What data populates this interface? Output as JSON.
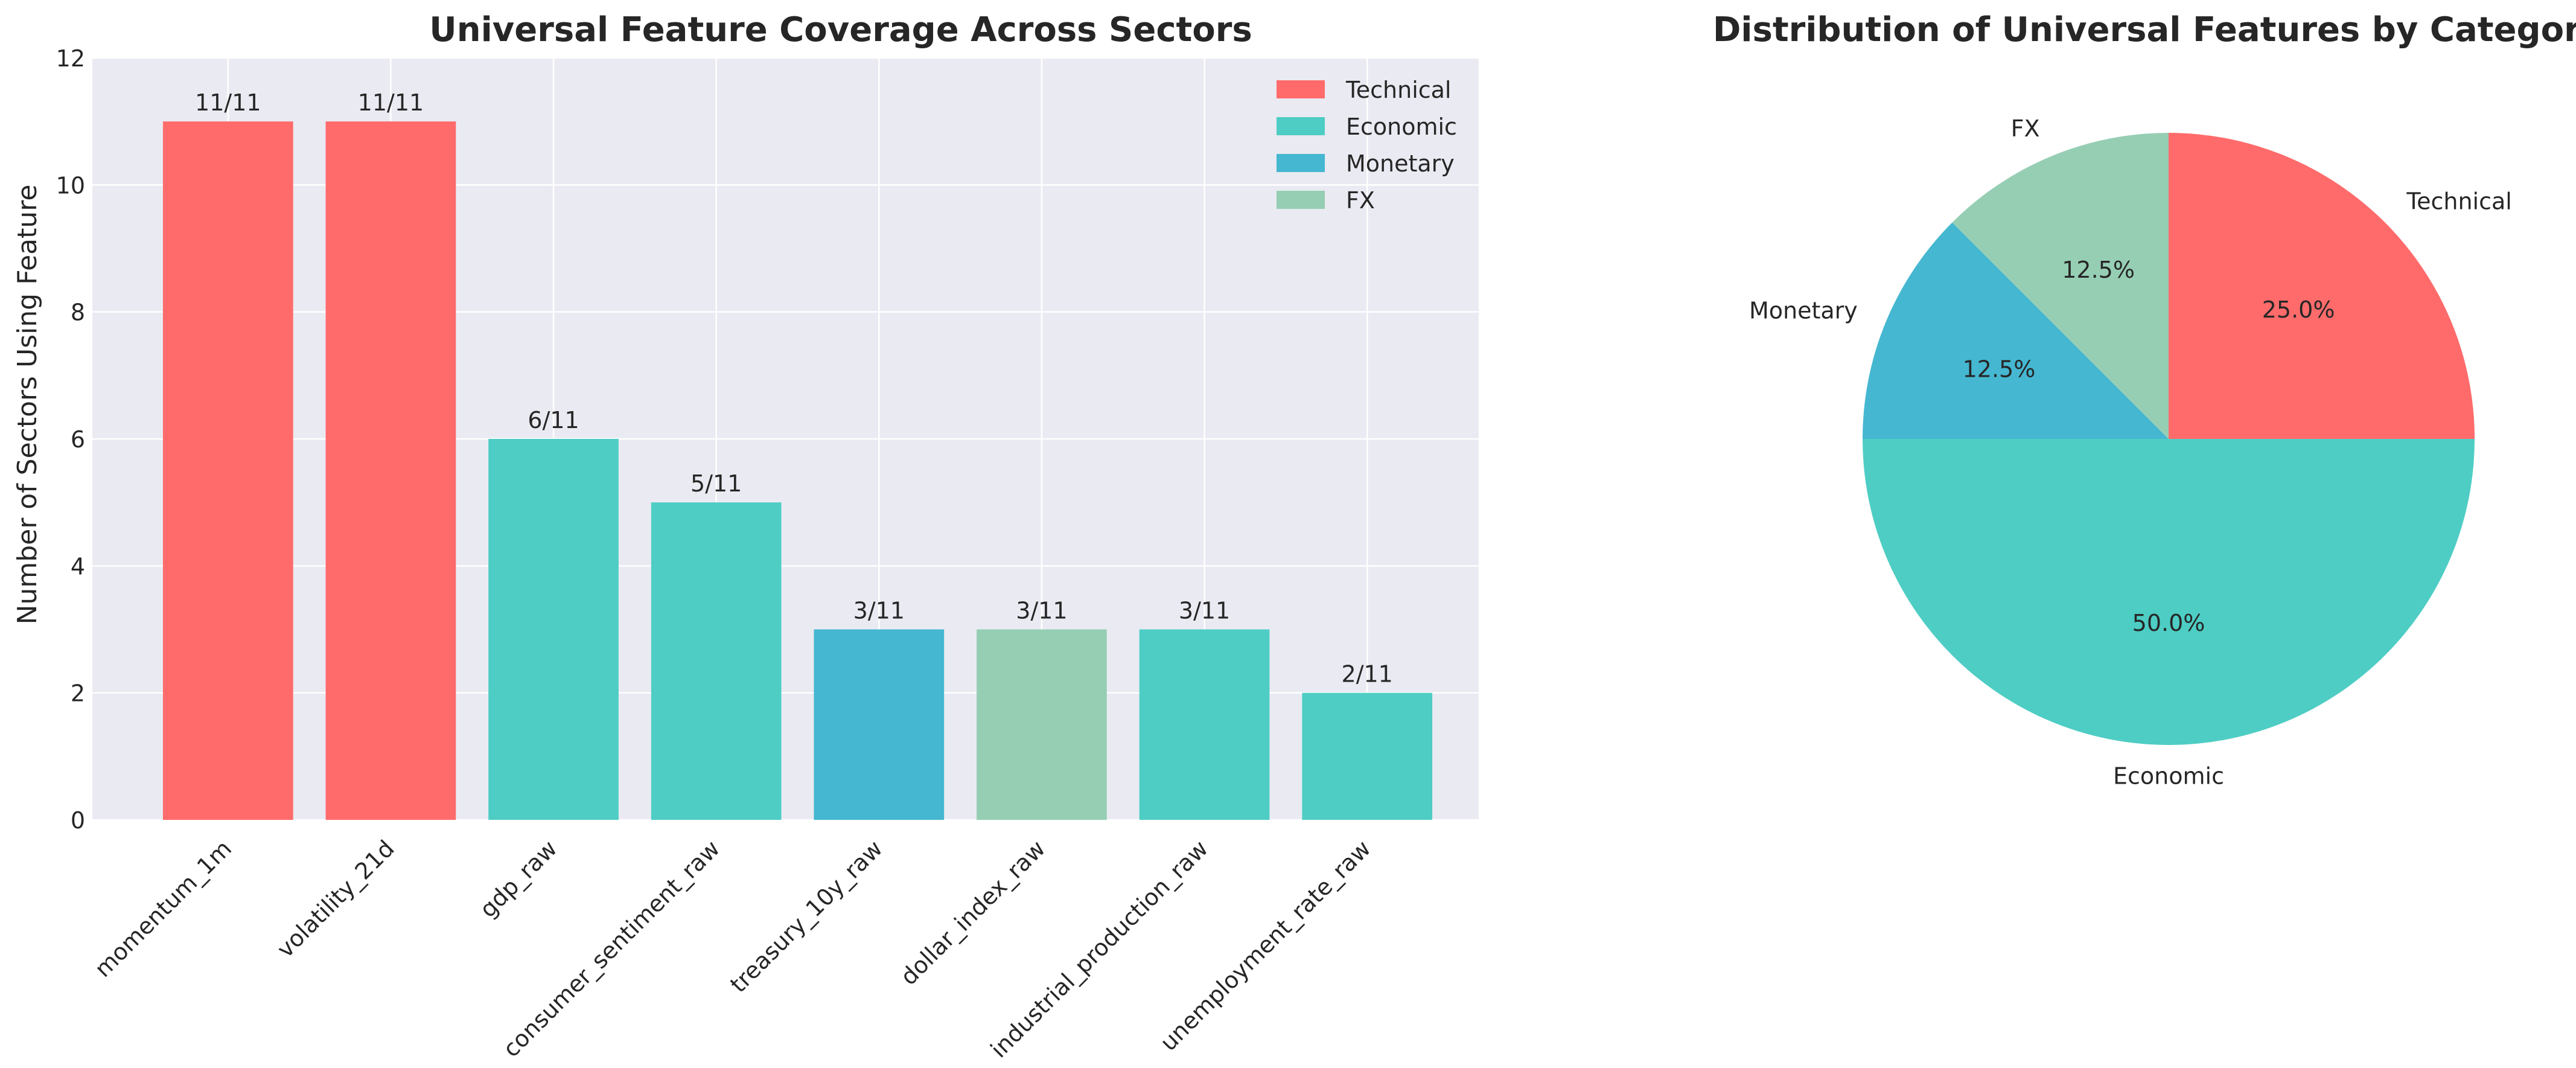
{
  "colors": {
    "plot_background": "#eaeaf2",
    "grid": "#ffffff",
    "text": "#262626",
    "categories": {
      "Technical": "#ff6b6b",
      "Economic": "#4ecdc4",
      "Monetary": "#45b7d1",
      "FX": "#96ceb4"
    }
  },
  "chart_data": [
    {
      "type": "bar",
      "title": "Universal Feature Coverage Across Sectors",
      "xlabel": "",
      "ylabel": "Number of Sectors Using Feature",
      "ylim": [
        0,
        12
      ],
      "yticks": [
        "0",
        "2",
        "4",
        "6",
        "8",
        "10",
        "12"
      ],
      "categories": [
        "momentum_1m",
        "volatility_21d",
        "gdp_raw",
        "consumer_sentiment_raw",
        "treasury_10y_raw",
        "dollar_index_raw",
        "industrial_production_raw",
        "unemployment_rate_raw"
      ],
      "values": [
        11,
        11,
        6,
        5,
        3,
        3,
        3,
        2
      ],
      "bar_categories": [
        "Technical",
        "Technical",
        "Economic",
        "Economic",
        "Monetary",
        "FX",
        "Economic",
        "Economic"
      ],
      "data_labels": [
        "11/11",
        "11/11",
        "6/11",
        "5/11",
        "3/11",
        "3/11",
        "3/11",
        "2/11"
      ],
      "legend": {
        "position": "top-right",
        "entries": [
          "Technical",
          "Economic",
          "Monetary",
          "FX"
        ]
      },
      "grid": true
    },
    {
      "type": "pie",
      "title": "Distribution of Universal Features by Category",
      "labels": [
        "Technical",
        "Economic",
        "Monetary",
        "FX"
      ],
      "values": [
        25.0,
        50.0,
        12.5,
        12.5
      ],
      "pct_labels": [
        "25.0%",
        "50.0%",
        "12.5%",
        "12.5%"
      ]
    }
  ]
}
